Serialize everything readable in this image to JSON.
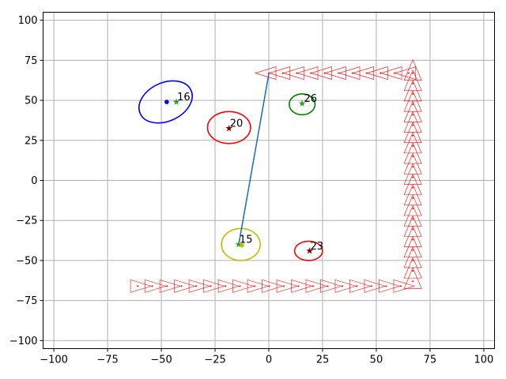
{
  "chart_data": {
    "type": "scatter",
    "title": "",
    "xlabel": "",
    "ylabel": "",
    "xlim": [
      -105,
      105
    ],
    "ylim": [
      -105,
      105
    ],
    "grid": true,
    "x_ticks": [
      -100,
      -75,
      -50,
      -25,
      0,
      25,
      50,
      75,
      100
    ],
    "y_ticks": [
      -100,
      -75,
      -50,
      -25,
      0,
      25,
      50,
      75,
      100
    ],
    "x_tick_labels": [
      "−100",
      "−75",
      "−50",
      "−25",
      "0",
      "25",
      "50",
      "75",
      "100"
    ],
    "y_tick_labels": [
      "−100",
      "−75",
      "−50",
      "−25",
      "0",
      "25",
      "50",
      "75",
      "100"
    ],
    "colors": {
      "blue": "#0000ff",
      "red": "#ff0000",
      "green": "#008000",
      "yellow": "#bfbf00",
      "line": "#1f77b4",
      "grid": "#b0b0b0",
      "star": "#2ca02c",
      "darkred": "#8b0000"
    },
    "annotations": [
      {
        "label": "16",
        "x": -43,
        "y": 49
      },
      {
        "label": "20",
        "x": -18.5,
        "y": 32.5
      },
      {
        "label": "26",
        "x": 16,
        "y": 48
      },
      {
        "label": "15",
        "x": -14,
        "y": -40
      },
      {
        "label": "23",
        "x": 19,
        "y": -44
      }
    ],
    "ellipses": [
      {
        "id": "16",
        "color": "blue",
        "cx": -48,
        "cy": 49,
        "rx": 13,
        "ry": 12,
        "angle": 25
      },
      {
        "id": "20",
        "color": "red",
        "cx": -18.5,
        "cy": 33,
        "rx": 10,
        "ry": 10
      },
      {
        "id": "26",
        "color": "green",
        "cx": 15.5,
        "cy": 47.5,
        "rx": 6,
        "ry": 6.5
      },
      {
        "id": "15",
        "color": "yellow",
        "cx": -13,
        "cy": -40,
        "rx": 9,
        "ry": 10
      },
      {
        "id": "23",
        "color": "red",
        "cx": 18.5,
        "cy": -44,
        "rx": 6.5,
        "ry": 6
      }
    ],
    "points": [
      {
        "x": -47.5,
        "y": 49,
        "color": "blue",
        "marker": "dot"
      },
      {
        "x": -43,
        "y": 49,
        "color": "star",
        "marker": "star"
      },
      {
        "x": -18.5,
        "y": 32.5,
        "color": "darkred",
        "marker": "star"
      },
      {
        "x": 15.5,
        "y": 48,
        "color": "star",
        "marker": "star"
      },
      {
        "x": -14,
        "y": -40,
        "color": "star",
        "marker": "star"
      },
      {
        "x": -12.5,
        "y": -40.5,
        "color": "yellow",
        "marker": "dot"
      },
      {
        "x": 19,
        "y": -44,
        "color": "darkred",
        "marker": "star"
      }
    ],
    "segment": {
      "x1": 0,
      "y1": 66.5,
      "x2": -14,
      "y2": -40
    },
    "top_row": {
      "y": 67,
      "x_start": 0,
      "x_end": 66,
      "step": 6.5
    },
    "bottom_row": {
      "y": -66,
      "x_start": -61,
      "x_end": 67,
      "step": 6.8
    },
    "right_column": {
      "x": 67,
      "y_start": 67,
      "y_end": -66,
      "step": 6.5
    }
  }
}
